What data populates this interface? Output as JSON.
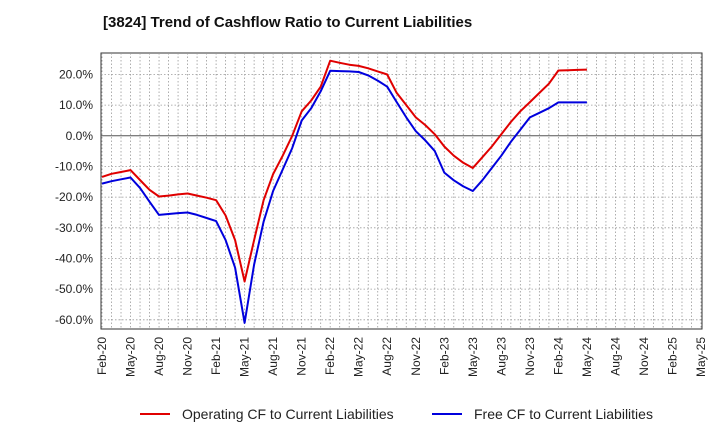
{
  "chart_data": {
    "type": "line",
    "title": "[3824]  Trend of Cashflow Ratio to Current Liabilities",
    "xlabel": "",
    "ylabel": "",
    "ylim": [
      -63,
      27
    ],
    "yticks": [
      20,
      10,
      0,
      -10,
      -20,
      -30,
      -40,
      -50,
      -60
    ],
    "ytick_labels": [
      "20.0%",
      "10.0%",
      "0.0%",
      "-10.0%",
      "-20.0%",
      "-30.0%",
      "-40.0%",
      "-50.0%",
      "-60.0%"
    ],
    "xtick_labels": [
      "Feb-20",
      "May-20",
      "Aug-20",
      "Nov-20",
      "Feb-21",
      "May-21",
      "Aug-21",
      "Nov-21",
      "Feb-22",
      "May-22",
      "Aug-22",
      "Nov-22",
      "Feb-23",
      "May-23",
      "Aug-23",
      "Nov-23",
      "Feb-24",
      "May-24",
      "Aug-24",
      "Nov-24",
      "Feb-25",
      "May-25"
    ],
    "grid": true,
    "legend_position": "bottom",
    "x": [
      "2020-02",
      "2020-03",
      "2020-04",
      "2020-05",
      "2020-06",
      "2020-07",
      "2020-08",
      "2020-09",
      "2020-10",
      "2020-11",
      "2020-12",
      "2021-01",
      "2021-02",
      "2021-03",
      "2021-04",
      "2021-05",
      "2021-06",
      "2021-07",
      "2021-08",
      "2021-09",
      "2021-10",
      "2021-11",
      "2021-12",
      "2022-01",
      "2022-02",
      "2022-03",
      "2022-04",
      "2022-05",
      "2022-06",
      "2022-07",
      "2022-08",
      "2022-09",
      "2022-10",
      "2022-11",
      "2022-12",
      "2023-01",
      "2023-02",
      "2023-03",
      "2023-04",
      "2023-05",
      "2023-06",
      "2023-07",
      "2023-08",
      "2023-09",
      "2023-10",
      "2023-11",
      "2023-12",
      "2024-01",
      "2024-02",
      "2024-03",
      "2024-04",
      "2024-05"
    ],
    "series": [
      {
        "name": "Operating CF to Current Liabilities",
        "color": "#e00000",
        "values": [
          -13.4,
          -12.4,
          -11.8,
          -11.2,
          -14.4,
          -17.6,
          -19.8,
          -19.5,
          -19.1,
          -18.8,
          -19.5,
          -20.2,
          -21.0,
          -26.0,
          -34.0,
          -47.5,
          -34.0,
          -21.0,
          -12.5,
          -6.5,
          0.0,
          8.0,
          11.5,
          16.0,
          24.5,
          23.8,
          23.2,
          22.8,
          22.0,
          21.0,
          20.0,
          14.0,
          10.0,
          6.0,
          3.5,
          0.5,
          -3.5,
          -6.5,
          -8.8,
          -10.5,
          -7.0,
          -3.5,
          0.5,
          4.5,
          8.0,
          11.0,
          14.0,
          17.0,
          21.3,
          21.4,
          21.5,
          21.6
        ]
      },
      {
        "name": "Free CF to Current Liabilities",
        "color": "#0000dd",
        "values": [
          -15.6,
          -14.8,
          -14.2,
          -13.6,
          -17.0,
          -21.5,
          -25.8,
          -25.5,
          -25.2,
          -25.0,
          -25.8,
          -26.8,
          -27.8,
          -34.0,
          -43.0,
          -61.0,
          -42.0,
          -28.0,
          -18.0,
          -11.0,
          -4.0,
          5.0,
          9.0,
          14.5,
          21.2,
          21.1,
          21.0,
          20.8,
          19.7,
          18.0,
          16.0,
          11.0,
          6.0,
          1.5,
          -1.5,
          -5.0,
          -12.0,
          -14.5,
          -16.5,
          -18.0,
          -14.5,
          -10.5,
          -6.5,
          -2.0,
          2.0,
          6.0,
          7.5,
          9.0,
          10.9,
          10.9,
          10.9,
          10.9
        ]
      }
    ]
  }
}
